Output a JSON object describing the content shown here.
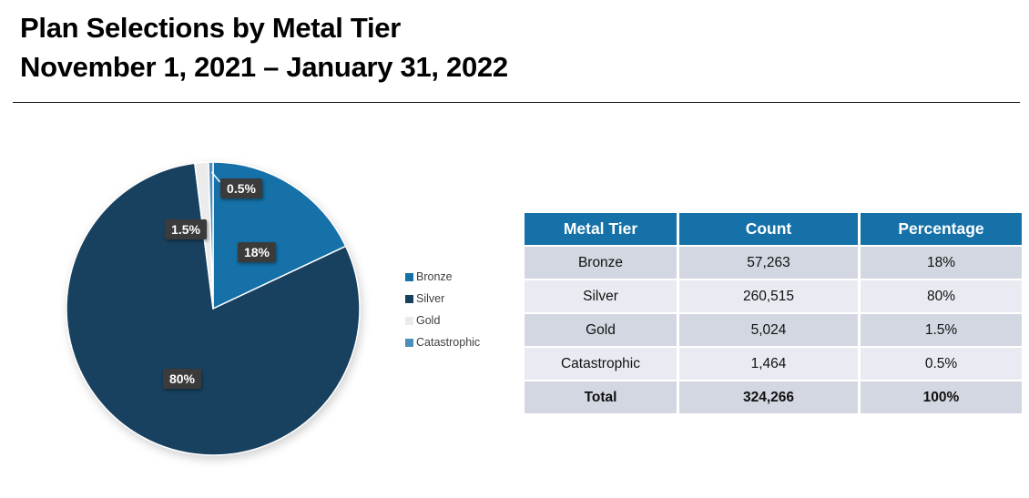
{
  "header": {
    "title_line1": "Plan Selections by Metal Tier",
    "title_line2": "November 1, 2021 – January 31, 2022"
  },
  "colors": {
    "bronze": "#1571A8",
    "silver": "#18405F",
    "gold": "#EBEBEB",
    "catastrophic": "#4A8FBA",
    "table_header_bg": "#1571A8",
    "row_dark": "#D3D7E1",
    "row_light": "#E9EBF2",
    "data_label_bg": "#3B3B3B",
    "data_label_text": "#FFFFFF"
  },
  "chart_data": {
    "type": "pie",
    "title": "Plan Selections by Metal Tier",
    "subtitle": "November 1, 2021 – January 31, 2022",
    "categories": [
      "Bronze",
      "Silver",
      "Gold",
      "Catastrophic"
    ],
    "values": [
      18,
      80,
      1.5,
      0.5
    ],
    "value_labels": [
      "18%",
      "80%",
      "1.5%",
      "0.5%"
    ],
    "counts": [
      57263,
      260515,
      5024,
      1464
    ],
    "total_count": 324266,
    "colors": [
      "#1571A8",
      "#18405F",
      "#EBEBEB",
      "#4A8FBA"
    ],
    "start_angle_deg": 0,
    "direction": "clockwise",
    "legend_position": "right",
    "legend_entries": [
      "Bronze",
      "Silver",
      "Gold",
      "Catastrophic"
    ]
  },
  "legend": {
    "items": [
      {
        "label": "Bronze",
        "color": "#1571A8"
      },
      {
        "label": "Silver",
        "color": "#18405F"
      },
      {
        "label": "Gold",
        "color": "#EBEBEB"
      },
      {
        "label": "Catastrophic",
        "color": "#4A8FBA"
      }
    ]
  },
  "table": {
    "columns": [
      "Metal Tier",
      "Count",
      "Percentage"
    ],
    "rows": [
      [
        "Bronze",
        "57,263",
        "18%"
      ],
      [
        "Silver",
        "260,515",
        "80%"
      ],
      [
        "Gold",
        "5,024",
        "1.5%"
      ],
      [
        "Catastrophic",
        "1,464",
        "0.5%"
      ]
    ],
    "total_row": [
      "Total",
      "324,266",
      "100%"
    ]
  }
}
